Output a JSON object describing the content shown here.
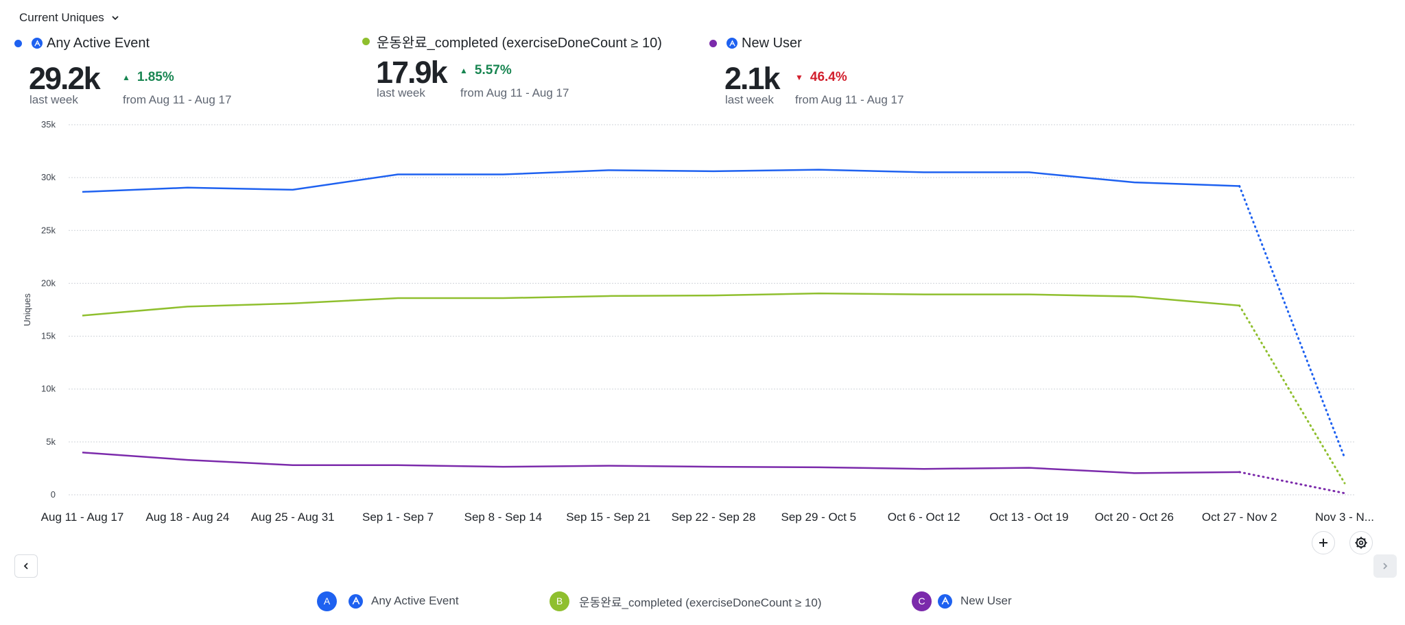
{
  "metric_selector": {
    "label": "Current Uniques"
  },
  "stats": [
    {
      "name": "Any Active Event",
      "color": "#1e61f0",
      "show_icon": true,
      "value": "29.2k",
      "sub": "last week",
      "change": "1.85%",
      "direction": "up",
      "range": "from Aug 11 - Aug 17"
    },
    {
      "name": "운동완료_completed (exerciseDoneCount ≥ 10)",
      "color": "#8fbf2e",
      "show_icon": false,
      "value": "17.9k",
      "sub": "last week",
      "change": "5.57%",
      "direction": "up",
      "range": "from Aug 11 - Aug 17"
    },
    {
      "name": "New User",
      "color": "#7b2aab",
      "show_icon": true,
      "value": "2.1k",
      "sub": "last week",
      "change": "46.4%",
      "direction": "down",
      "range": "from Aug 11 - Aug 17"
    }
  ],
  "chart_data": {
    "type": "line",
    "ylabel": "Uniques",
    "ylim": [
      0,
      35000
    ],
    "yticks": [
      0,
      5000,
      10000,
      15000,
      20000,
      25000,
      30000,
      35000
    ],
    "ytick_labels": [
      "0",
      "5k",
      "10k",
      "15k",
      "20k",
      "25k",
      "30k",
      "35k"
    ],
    "grid": true,
    "legend": "bottom",
    "incomplete_last_period": true,
    "categories": [
      "Aug 11 - Aug 17",
      "Aug 18 - Aug 24",
      "Aug 25 - Aug 31",
      "Sep 1 - Sep 7",
      "Sep 8 - Sep 14",
      "Sep 15 - Sep 21",
      "Sep 22 - Sep 28",
      "Sep 29 - Oct 5",
      "Oct 6 - Oct 12",
      "Oct 13 - Oct 19",
      "Oct 20 - Oct 26",
      "Oct 27 - Nov 2",
      "Nov 3 - N..."
    ],
    "series": [
      {
        "name": "Any Active Event",
        "color": "#1e61f0",
        "values": [
          28650,
          29050,
          28850,
          30300,
          30300,
          30700,
          30600,
          30750,
          30500,
          30500,
          29550,
          29200,
          3500
        ]
      },
      {
        "name": "운동완료_completed (exerciseDoneCount ≥ 10)",
        "color": "#8fbf2e",
        "values": [
          16950,
          17800,
          18100,
          18600,
          18600,
          18800,
          18850,
          19050,
          18950,
          18950,
          18750,
          17900,
          1100
        ]
      },
      {
        "name": "New User",
        "color": "#7b2aab",
        "values": [
          4000,
          3300,
          2800,
          2800,
          2650,
          2750,
          2650,
          2600,
          2450,
          2550,
          2050,
          2150,
          150
        ]
      }
    ]
  },
  "legend": [
    {
      "badge": "A",
      "label": "Any Active Event",
      "color": "#1e61f0",
      "show_icon": true
    },
    {
      "badge": "B",
      "label": "운동완료_completed (exerciseDoneCount ≥ 10)",
      "color": "#8fbf2e",
      "show_icon": false
    },
    {
      "badge": "C",
      "label": "New User",
      "color": "#7b2aab",
      "show_icon": true
    }
  ],
  "controls": {
    "add_icon": "plus-icon",
    "settings_icon": "gear-icon",
    "prev_icon": "chevron-left-icon",
    "next_icon": "chevron-right-icon"
  }
}
